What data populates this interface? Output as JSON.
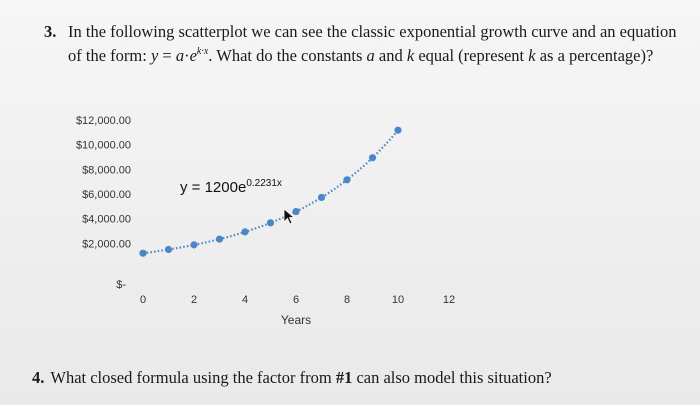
{
  "question3": {
    "number": "3.",
    "line1": "In the following scatterplot we can see the classic exponential growth curve and an equation",
    "line2_prefix": "of the form:",
    "formula_y": "y",
    "formula_eq": " = ",
    "formula_a": "a",
    "formula_dot": "·",
    "formula_e": "e",
    "formula_exp": "k·x",
    "line2_mid": ". What do the constants ",
    "const_a": "a",
    "line2_and": " and ",
    "const_k": "k",
    "line2_equal": " equal (represent ",
    "const_k2": "k",
    "line2_suffix": " as a percentage)?"
  },
  "question4": {
    "number": "4.",
    "text_before": "What closed formula using the factor from ",
    "ref": "#1",
    "text_after": " can also model this situation?"
  },
  "chart_data": {
    "type": "scatter",
    "equation_base": "y = 1200e",
    "equation_exponent": "0.2231x",
    "xlabel": "Years",
    "ylabel": "",
    "x_ticks": [
      "0",
      "2",
      "4",
      "6",
      "8",
      "10",
      "12"
    ],
    "y_ticks": [
      "$-",
      "$2,000.00",
      "$4,000.00",
      "$6,000.00",
      "$8,000.00",
      "$10,000.00",
      "$12,000.00"
    ],
    "xlim": [
      0,
      12
    ],
    "ylim": [
      0,
      12000
    ],
    "points": {
      "x": [
        0,
        1,
        2,
        3,
        4,
        5,
        6,
        7,
        8,
        9,
        10
      ],
      "y": [
        1200,
        1500,
        1875,
        2344,
        2930,
        3662,
        4578,
        5722,
        7153,
        8941,
        11176
      ]
    },
    "trendline": "exponential, dotted",
    "series_color": "#4a86c8",
    "grid": false
  }
}
